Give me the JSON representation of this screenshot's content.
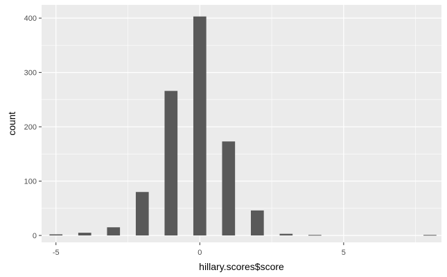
{
  "chart_data": {
    "type": "bar",
    "xlabel": "hillary.scores$score",
    "ylabel": "count",
    "xlim": [
      -5.5,
      8.4
    ],
    "ylim": [
      0,
      404
    ],
    "x_ticks": [
      -5,
      0,
      5
    ],
    "y_ticks": [
      0,
      100,
      200,
      300,
      400
    ],
    "bar_width": 0.45,
    "x": [
      -5,
      -4,
      -3,
      -2,
      -1,
      0,
      1,
      2,
      3,
      4,
      8
    ],
    "values": [
      2,
      5,
      15,
      80,
      266,
      403,
      173,
      46,
      3,
      1,
      1
    ],
    "grid": true,
    "colors": {
      "panel_background": "#ebebeb",
      "grid_major": "#ffffff",
      "bar_fill": "#595959",
      "tick_text": "#4d4d4d",
      "tick_mark": "#333333",
      "axis_title": "#000000"
    }
  }
}
